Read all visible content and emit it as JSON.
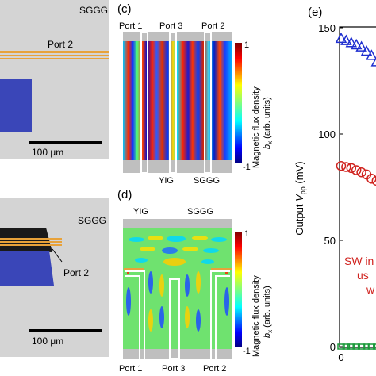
{
  "panels": {
    "c": {
      "label": "(c)",
      "ports": [
        "Port 1",
        "Port 3",
        "Port 2"
      ],
      "yig": "YIG",
      "sggg": "SGGG"
    },
    "d": {
      "label": "(d)",
      "ports": [
        "Port 1",
        "Port 3",
        "Port 2"
      ],
      "yig": "YIG",
      "sggg": "SGGG"
    },
    "e": {
      "label": "(e)"
    }
  },
  "left": {
    "top": {
      "sggg": "SGGG",
      "port": "Port 2",
      "scale": "100 μm"
    },
    "bottom": {
      "sggg": "SGGG",
      "port": "Port 2",
      "scale": "100 μm"
    }
  },
  "colorbar": {
    "max": "1",
    "min": "-1",
    "title": "Magnetic flux density",
    "sub_sym": "b",
    "sub_idx": "x",
    "sub_units": "(arb. units)"
  },
  "annotation": {
    "line1": "SW in",
    "line2": "us",
    "line3": "w"
  },
  "colors": {
    "blue": "#1f2fd0",
    "red": "#d0231f",
    "green": "#1a9a3a",
    "orange": "#e8a23a",
    "panel_gray": "#d4d4d4",
    "pad_blue": "#3a46b8"
  },
  "chart_data": {
    "type": "scatter",
    "ylabel_main": "Output",
    "ylabel_sym": "V",
    "ylabel_sub": "pp",
    "ylabel_unit": "(mV)",
    "ylim": [
      0,
      150
    ],
    "yticks": [
      "0",
      "50",
      "100",
      "150"
    ],
    "xticks": [
      "0"
    ],
    "series": [
      {
        "marker": "triangle",
        "color": "#1f2fd0",
        "x": [
          0.0,
          0.1,
          0.2,
          0.3,
          0.4,
          0.5,
          0.6,
          0.7,
          0.8
        ],
        "y": [
          145,
          144,
          143,
          142,
          141,
          139,
          137,
          134,
          131
        ]
      },
      {
        "marker": "circle",
        "color": "#d0231f",
        "x": [
          0.0,
          0.1,
          0.2,
          0.3,
          0.4,
          0.5,
          0.6,
          0.7,
          0.8
        ],
        "y": [
          85,
          84.5,
          84,
          83,
          82,
          81,
          79,
          78,
          76
        ]
      },
      {
        "marker": "square",
        "color": "#1a9a3a",
        "x": [
          0.0,
          0.1,
          0.2,
          0.3,
          0.4,
          0.5,
          0.6,
          0.7,
          0.8
        ],
        "y": [
          0,
          0,
          0,
          0,
          0,
          0,
          0,
          0,
          0
        ]
      }
    ]
  }
}
